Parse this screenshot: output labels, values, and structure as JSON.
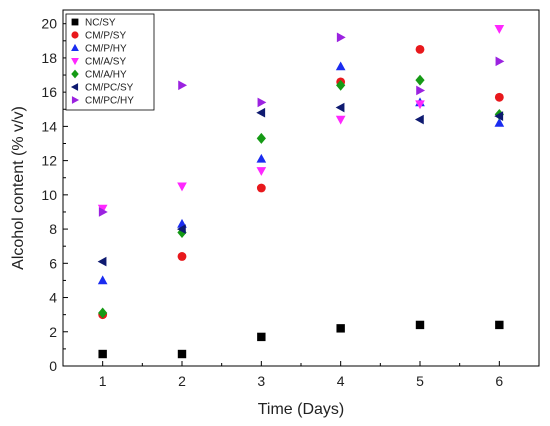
{
  "chart_data": {
    "type": "scatter",
    "title": "",
    "xlabel": "Time (Days)",
    "ylabel": "Alcohol content (% v/v)",
    "xlim": [
      0.5,
      6.5
    ],
    "ylim": [
      0,
      20.8
    ],
    "x_ticks": [
      1,
      2,
      3,
      4,
      5,
      6
    ],
    "y_ticks": [
      0,
      2,
      4,
      6,
      8,
      10,
      12,
      14,
      16,
      18,
      20
    ],
    "grid": false,
    "legend": "top-left",
    "series": [
      {
        "name": "NC/SY",
        "marker": "square",
        "color": "#000000",
        "x": [
          1,
          2,
          3,
          4,
          5,
          6
        ],
        "y": [
          0.7,
          0.7,
          1.7,
          2.2,
          2.4,
          2.4
        ]
      },
      {
        "name": "CM/P/SY",
        "marker": "circle",
        "color": "#e8181c",
        "x": [
          1,
          2,
          3,
          4,
          5,
          6
        ],
        "y": [
          3.0,
          6.4,
          10.4,
          16.6,
          18.5,
          15.7
        ]
      },
      {
        "name": "CM/P/HY",
        "marker": "triangle-up",
        "color": "#1a2cf0",
        "x": [
          1,
          2,
          3,
          4,
          5,
          6
        ],
        "y": [
          5.0,
          8.3,
          12.1,
          17.5,
          15.4,
          14.2
        ]
      },
      {
        "name": "CM/A/SY",
        "marker": "triangle-down",
        "color": "#ff27ff",
        "x": [
          1,
          2,
          3,
          4,
          5,
          6
        ],
        "y": [
          9.2,
          10.5,
          11.4,
          14.4,
          15.3,
          19.7
        ]
      },
      {
        "name": "CM/A/HY",
        "marker": "diamond",
        "color": "#159a15",
        "x": [
          1,
          2,
          3,
          4,
          5,
          6
        ],
        "y": [
          3.1,
          7.8,
          13.3,
          16.4,
          16.7,
          14.7
        ]
      },
      {
        "name": "CM/PC/SY",
        "marker": "triangle-left",
        "color": "#0e1a70",
        "x": [
          1,
          2,
          3,
          4,
          5,
          6
        ],
        "y": [
          6.1,
          8.0,
          14.8,
          15.1,
          14.4,
          14.6
        ]
      },
      {
        "name": "CM/PC/HY",
        "marker": "triangle-right",
        "color": "#9b22e0",
        "x": [
          1,
          2,
          3,
          4,
          5,
          6
        ],
        "y": [
          9.0,
          16.4,
          15.4,
          19.2,
          16.1,
          17.8
        ]
      }
    ]
  }
}
